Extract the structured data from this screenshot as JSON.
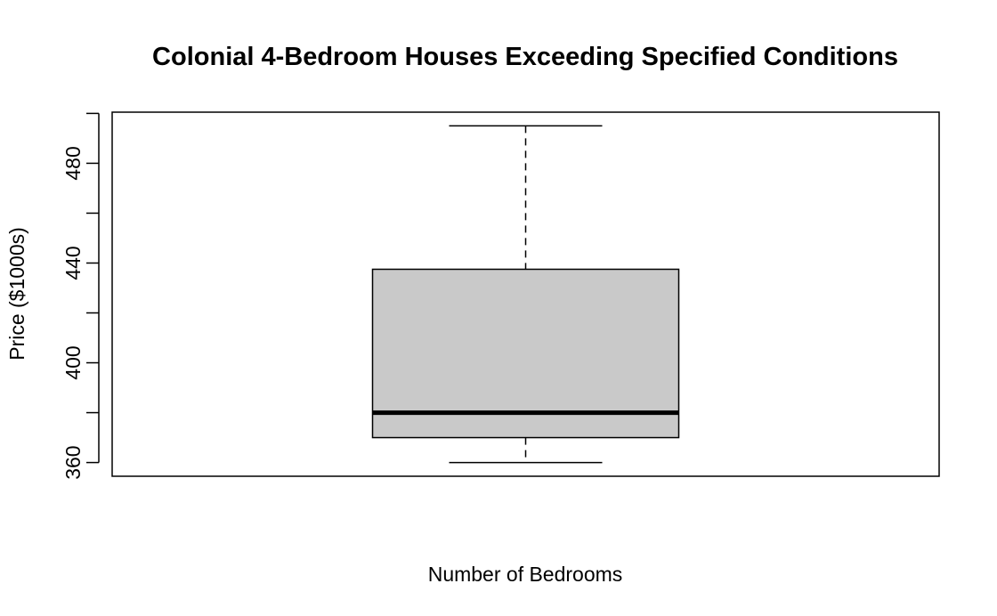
{
  "chart_data": {
    "type": "box",
    "title": "Colonial 4-Bedroom Houses Exceeding Specified Conditions",
    "xlabel": "Number of Bedrooms",
    "ylabel": "Price ($1000s)",
    "ylim": [
      354.5,
      500.5
    ],
    "yticks": [
      360,
      380,
      400,
      420,
      440,
      460,
      480,
      500
    ],
    "ytick_labels": [
      {
        "value": 360,
        "label": "360"
      },
      {
        "value": 400,
        "label": "400"
      },
      {
        "value": 440,
        "label": "440"
      },
      {
        "value": 480,
        "label": "480"
      }
    ],
    "series": [
      {
        "whisker_low": 360,
        "q1": 370,
        "median": 380,
        "q3": 437.5,
        "whisker_high": 495
      }
    ],
    "colors": {
      "box_fill": "#c9c9c9",
      "stroke": "#000000"
    },
    "grid": false,
    "legend": "none"
  }
}
